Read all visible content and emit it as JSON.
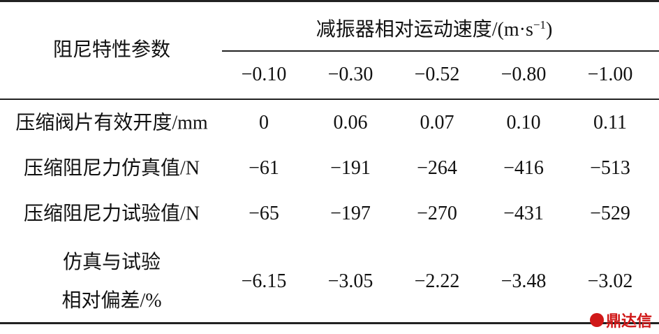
{
  "table": {
    "corner": "阻尼特性参数",
    "group_header": {
      "text": "减振器相对运动速度/(m·s",
      "sup": "−1",
      "close": ")"
    },
    "columns": [
      "−0.10",
      "−0.30",
      "−0.52",
      "−0.80",
      "−1.00"
    ],
    "rows": [
      {
        "label": [
          "压缩阀片有效开度/mm"
        ],
        "cells": [
          "0",
          "0.06",
          "0.07",
          "0.10",
          "0.11"
        ]
      },
      {
        "label": [
          "压缩阻尼力仿真值/N"
        ],
        "cells": [
          "−61",
          "−191",
          "−264",
          "−416",
          "−513"
        ]
      },
      {
        "label": [
          "压缩阻尼力试验值/N"
        ],
        "cells": [
          "−65",
          "−197",
          "−270",
          "−431",
          "−529"
        ]
      },
      {
        "label": [
          "仿真与试验",
          "相对偏差/%"
        ],
        "cells": [
          "−6.15",
          "−3.05",
          "−2.22",
          "−3.48",
          "−3.02"
        ]
      }
    ]
  },
  "watermark": "鼎达信"
}
